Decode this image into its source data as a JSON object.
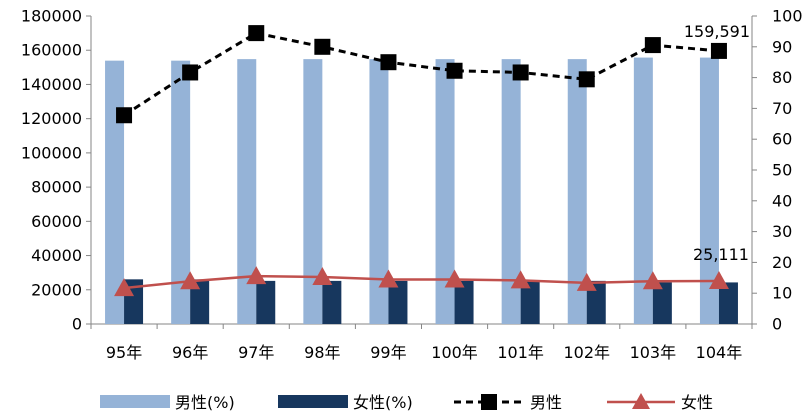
{
  "chart_data": {
    "type": "bar+line",
    "categories": [
      "95年",
      "96年",
      "97年",
      "98年",
      "99年",
      "100年",
      "101年",
      "102年",
      "103年",
      "104年"
    ],
    "left_axis": {
      "ylim": [
        0,
        180000
      ],
      "ticks": [
        "0",
        "20000",
        "40000",
        "60000",
        "80000",
        "100000",
        "120000",
        "140000",
        "160000",
        "180000"
      ]
    },
    "right_axis": {
      "ylim": [
        0,
        100
      ],
      "ticks": [
        "0",
        "10",
        "20",
        "30",
        "40",
        "50",
        "60",
        "70",
        "80",
        "90",
        "100"
      ]
    },
    "bar_series": [
      {
        "name": "男性(%)",
        "color": "#95b3d7",
        "values": [
          85.5,
          85.5,
          86.0,
          86.0,
          86.0,
          86.0,
          86.0,
          86.0,
          86.5,
          86.5
        ]
      },
      {
        "name": "女性(%)",
        "color": "#17375e",
        "values": [
          14.5,
          14.5,
          14.0,
          14.0,
          14.0,
          14.0,
          14.0,
          14.0,
          13.5,
          13.5
        ]
      }
    ],
    "line_series": [
      {
        "name": "男性",
        "color": "#000000",
        "marker": "square",
        "dashed": true,
        "values": [
          122000,
          147000,
          170000,
          162000,
          153000,
          148000,
          147000,
          143000,
          163000,
          159591
        ]
      },
      {
        "name": "女性",
        "color": "#c0504d",
        "marker": "triangle",
        "dashed": false,
        "values": [
          21000,
          25000,
          28000,
          27500,
          26000,
          26000,
          25500,
          24000,
          25000,
          25111
        ]
      }
    ],
    "data_labels": [
      "159,591",
      "25,111"
    ],
    "grid": false,
    "legend_position": "bottom"
  }
}
